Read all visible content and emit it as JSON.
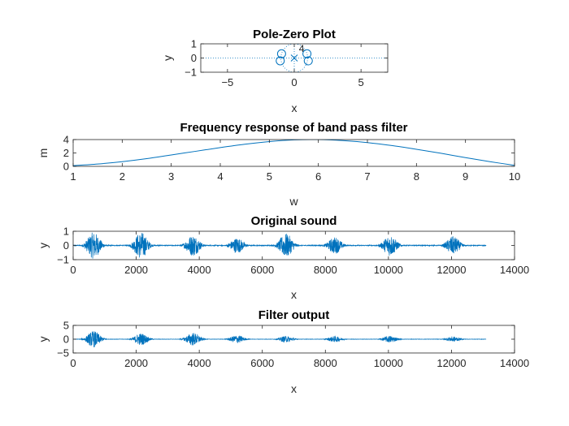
{
  "chart_data": [
    {
      "type": "scatter",
      "title": "Pole-Zero Plot",
      "xlabel": "x",
      "ylabel": "y",
      "xlim": [
        -7,
        7
      ],
      "ylim": [
        -1,
        1
      ],
      "xticks": [
        -5,
        0,
        5
      ],
      "yticks": [
        -1,
        0,
        1
      ],
      "grid": false,
      "unit_circle": true,
      "zeros": [
        [
          -0.95,
          0.3
        ],
        [
          -1.05,
          -0.2
        ],
        [
          0.95,
          0.3
        ],
        [
          1.05,
          -0.2
        ]
      ],
      "poles": [
        [
          0,
          0
        ]
      ],
      "pole_multiplicity_label": "4",
      "color": "#0072bd"
    },
    {
      "type": "line",
      "title": "Frequency response of band pass filter",
      "xlabel": "w",
      "ylabel": "m",
      "xlim": [
        1,
        10
      ],
      "ylim": [
        0,
        4
      ],
      "xticks": [
        1,
        2,
        3,
        4,
        5,
        6,
        7,
        8,
        9,
        10
      ],
      "yticks": [
        0,
        2,
        4
      ],
      "grid": false,
      "color": "#0072bd",
      "series": [
        {
          "x": [
            1,
            1.5,
            2,
            2.5,
            3,
            3.5,
            4,
            4.5,
            5,
            5.5,
            6,
            6.5,
            7,
            7.5,
            8,
            8.5,
            9,
            9.5,
            10
          ],
          "values": [
            0.1,
            0.35,
            0.7,
            1.15,
            1.7,
            2.25,
            2.8,
            3.3,
            3.7,
            3.95,
            4.0,
            3.85,
            3.55,
            3.1,
            2.55,
            1.95,
            1.3,
            0.7,
            0.15
          ]
        }
      ]
    },
    {
      "type": "line",
      "title": "Original sound",
      "xlabel": "x",
      "ylabel": "y",
      "xlim": [
        0,
        14000
      ],
      "ylim": [
        -1,
        1
      ],
      "xticks": [
        0,
        2000,
        4000,
        6000,
        8000,
        10000,
        12000,
        14000
      ],
      "yticks": [
        -1,
        0,
        1
      ],
      "grid": false,
      "color": "#0072bd",
      "signal_length": 13100,
      "noise_amplitude": 0.03,
      "bursts": [
        {
          "center": 650,
          "amplitude": 0.95
        },
        {
          "center": 2150,
          "amplitude": 0.95
        },
        {
          "center": 3800,
          "amplitude": 0.75
        },
        {
          "center": 5200,
          "amplitude": 0.55
        },
        {
          "center": 6750,
          "amplitude": 0.85
        },
        {
          "center": 8300,
          "amplitude": 0.6
        },
        {
          "center": 10050,
          "amplitude": 0.75
        },
        {
          "center": 12050,
          "amplitude": 0.65
        }
      ]
    },
    {
      "type": "line",
      "title": "Filter output",
      "xlabel": "x",
      "ylabel": "y",
      "xlim": [
        0,
        14000
      ],
      "ylim": [
        -5,
        5
      ],
      "xticks": [
        0,
        2000,
        4000,
        6000,
        8000,
        10000,
        12000,
        14000
      ],
      "yticks": [
        -5,
        0,
        5
      ],
      "grid": false,
      "color": "#0072bd",
      "signal_length": 13100,
      "noise_amplitude": 0.06,
      "bursts": [
        {
          "center": 650,
          "amplitude": 3.0
        },
        {
          "center": 2150,
          "amplitude": 2.2
        },
        {
          "center": 3800,
          "amplitude": 2.4
        },
        {
          "center": 5200,
          "amplitude": 1.5
        },
        {
          "center": 6750,
          "amplitude": 1.2
        },
        {
          "center": 8300,
          "amplitude": 1.1
        },
        {
          "center": 10050,
          "amplitude": 1.3
        },
        {
          "center": 12050,
          "amplitude": 1.0
        }
      ]
    }
  ]
}
